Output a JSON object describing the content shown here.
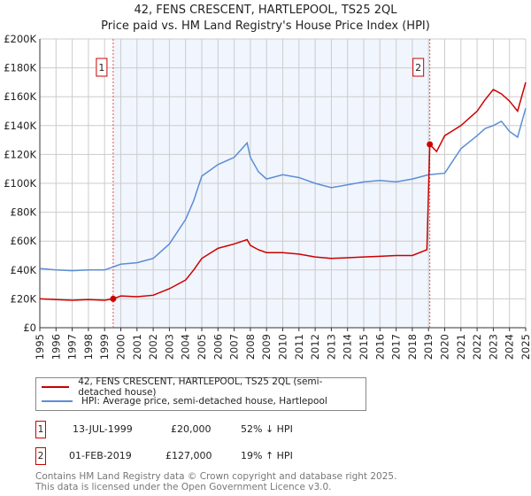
{
  "chart_data": {
    "type": "line",
    "title": "42, FENS CRESCENT, HARTLEPOOL, TS25 2QL",
    "subtitle": "Price paid vs. HM Land Registry's House Price Index (HPI)",
    "xlim": [
      1995,
      2025
    ],
    "ylim": [
      0,
      200000
    ],
    "yticks": [
      {
        "v": 0,
        "label": "£0"
      },
      {
        "v": 20000,
        "label": "£20K"
      },
      {
        "v": 40000,
        "label": "£40K"
      },
      {
        "v": 60000,
        "label": "£60K"
      },
      {
        "v": 80000,
        "label": "£80K"
      },
      {
        "v": 100000,
        "label": "£100K"
      },
      {
        "v": 120000,
        "label": "£120K"
      },
      {
        "v": 140000,
        "label": "£140K"
      },
      {
        "v": 160000,
        "label": "£160K"
      },
      {
        "v": 180000,
        "label": "£180K"
      },
      {
        "v": 200000,
        "label": "£200K"
      }
    ],
    "xticks": [
      "1995",
      "1996",
      "1997",
      "1998",
      "1999",
      "2000",
      "2001",
      "2002",
      "2003",
      "2004",
      "2005",
      "2006",
      "2007",
      "2008",
      "2009",
      "2010",
      "2011",
      "2012",
      "2013",
      "2014",
      "2015",
      "2016",
      "2017",
      "2018",
      "2019",
      "2020",
      "2021",
      "2022",
      "2023",
      "2024",
      "2025"
    ],
    "grid": true,
    "series": [
      {
        "name": "42, FENS CRESCENT, HARTLEPOOL, TS25 2QL (semi-detached house)",
        "color": "#cc0000",
        "x": [
          1995,
          1996,
          1997,
          1998,
          1999,
          1999.53,
          2000,
          2001,
          2002,
          2003,
          2004,
          2004.5,
          2005,
          2006,
          2007,
          2007.8,
          2008,
          2008.5,
          2009,
          2010,
          2011,
          2012,
          2013,
          2014,
          2015,
          2016,
          2017,
          2018,
          2018.9,
          2019.08,
          2019.5,
          2020,
          2021,
          2022,
          2022.5,
          2023,
          2023.5,
          2024,
          2024.5,
          2025
        ],
        "y": [
          20000,
          19500,
          19000,
          19500,
          19000,
          20000,
          22000,
          21500,
          22500,
          27000,
          33000,
          40000,
          48000,
          55000,
          58000,
          61000,
          57000,
          54000,
          52000,
          52000,
          51000,
          49000,
          48000,
          48500,
          49000,
          49500,
          50000,
          50000,
          54000,
          127000,
          122000,
          133000,
          140000,
          150000,
          158000,
          165000,
          162000,
          157000,
          150000,
          170000
        ]
      },
      {
        "name": "HPI: Average price, semi-detached house, Hartlepool",
        "color": "#5b8ed6",
        "x": [
          1995,
          1996,
          1997,
          1998,
          1999,
          2000,
          2001,
          2002,
          2003,
          2004,
          2004.5,
          2005,
          2006,
          2007,
          2007.8,
          2008,
          2008.5,
          2009,
          2010,
          2011,
          2012,
          2013,
          2014,
          2015,
          2016,
          2017,
          2018,
          2019,
          2020,
          2021,
          2022,
          2022.5,
          2023,
          2023.5,
          2024,
          2024.5,
          2025
        ],
        "y": [
          41000,
          40000,
          39500,
          40000,
          40000,
          44000,
          45000,
          48000,
          58000,
          75000,
          88000,
          105000,
          113000,
          118000,
          128000,
          118000,
          108000,
          103000,
          106000,
          104000,
          100000,
          97000,
          99000,
          101000,
          102000,
          101000,
          103000,
          106000,
          107000,
          124000,
          133000,
          138000,
          140000,
          143000,
          136000,
          132000,
          152000
        ]
      }
    ],
    "sales": [
      {
        "label": "1",
        "x": 1999.53,
        "date": "13-JUL-1999",
        "price": "£20,000",
        "hpi": "52% ↓ HPI",
        "y": 20000
      },
      {
        "label": "2",
        "x": 2019.08,
        "date": "01-FEB-2019",
        "price": "£127,000",
        "hpi": "19% ↑ HPI",
        "y": 127000
      }
    ]
  },
  "footer": {
    "line1": "Contains HM Land Registry data © Crown copyright and database right 2025.",
    "line2": "This data is licensed under the Open Government Licence v3.0."
  }
}
